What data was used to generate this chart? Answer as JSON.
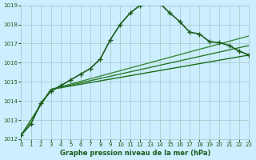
{
  "bg_color": "#cceeff",
  "grid_color": "#aacccc",
  "line_color_main": "#1a5c1a",
  "xlabel": "Graphe pression niveau de la mer (hPa)",
  "xmin": 0,
  "xmax": 23,
  "ymin": 1012,
  "ymax": 1019,
  "yticks": [
    1012,
    1013,
    1014,
    1015,
    1016,
    1017,
    1018,
    1019
  ],
  "xticks": [
    0,
    1,
    2,
    3,
    4,
    5,
    6,
    7,
    8,
    9,
    10,
    11,
    12,
    13,
    14,
    15,
    16,
    17,
    18,
    19,
    20,
    21,
    22,
    23
  ],
  "series": [
    {
      "x": [
        0,
        1,
        2,
        3,
        4,
        5,
        6,
        7,
        8,
        9,
        10,
        11,
        12,
        13,
        14,
        15,
        16,
        17,
        18,
        19,
        20,
        21,
        22,
        23
      ],
      "y": [
        1012.2,
        1012.8,
        1013.9,
        1014.5,
        1014.8,
        1015.1,
        1015.4,
        1015.7,
        1016.2,
        1017.2,
        1018.0,
        1018.6,
        1019.0,
        1019.1,
        1019.1,
        1018.6,
        1018.15,
        1017.6,
        1017.5,
        1017.1,
        1017.05,
        1016.9,
        1016.6,
        1016.4
      ],
      "marker": "+",
      "markersize": 4,
      "linewidth": 1.2,
      "color": "#1a5c1a",
      "linestyle": "-",
      "zorder": 3
    },
    {
      "x": [
        0,
        3,
        23
      ],
      "y": [
        1012.2,
        1014.6,
        1016.4
      ],
      "marker": null,
      "linewidth": 1.0,
      "color": "#1a6e1a",
      "linestyle": "-",
      "zorder": 2
    },
    {
      "x": [
        0,
        3,
        23
      ],
      "y": [
        1012.2,
        1014.6,
        1016.9
      ],
      "marker": null,
      "linewidth": 1.0,
      "color": "#2a7a2a",
      "linestyle": "-",
      "zorder": 2
    },
    {
      "x": [
        0,
        3,
        23
      ],
      "y": [
        1012.2,
        1014.6,
        1017.4
      ],
      "marker": null,
      "linewidth": 1.0,
      "color": "#3a8a3a",
      "linestyle": "-",
      "zorder": 2
    }
  ]
}
